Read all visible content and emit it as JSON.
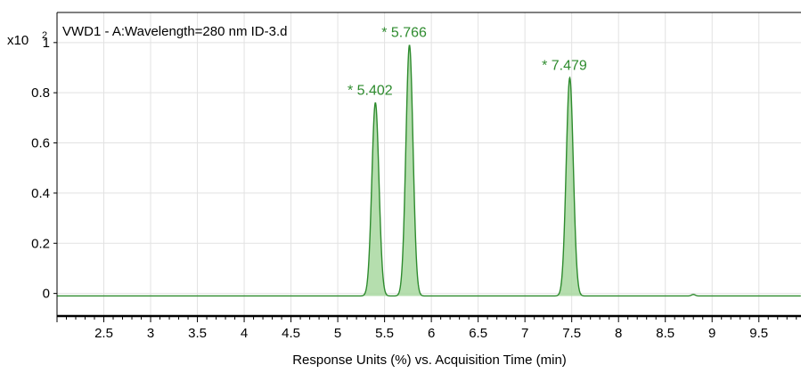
{
  "chart_data": {
    "type": "line",
    "title": "VWD1 - A:Wavelength=280 nm ID-3.d",
    "xlabel": "Response Units (%) vs. Acquisition Time (min)",
    "ylabel": "",
    "y_multiplier_base": "x10",
    "y_multiplier_exp": "2",
    "xlim": [
      2.0,
      9.95
    ],
    "ylim": [
      -0.09,
      1.12
    ],
    "x_ticks": [
      "2.5",
      "3",
      "3.5",
      "4",
      "4.5",
      "5",
      "5.5",
      "6",
      "6.5",
      "7",
      "7.5",
      "8",
      "8.5",
      "9",
      "9.5"
    ],
    "y_ticks": [
      "0",
      "0.2",
      "0.4",
      "0.6",
      "0.8",
      "1"
    ],
    "grid": true,
    "series_color": "#2e8b2e",
    "fill_color": "#a8d8a0",
    "baseline": -0.01,
    "peaks": [
      {
        "label": "* 5.402",
        "rt": 5.402,
        "height": 0.76
      },
      {
        "label": "* 5.766",
        "rt": 5.766,
        "height": 0.99
      },
      {
        "label": "* 7.479",
        "rt": 7.479,
        "height": 0.86
      }
    ],
    "minor_bumps": [
      {
        "rt": 8.8,
        "height": 0.006
      }
    ]
  }
}
